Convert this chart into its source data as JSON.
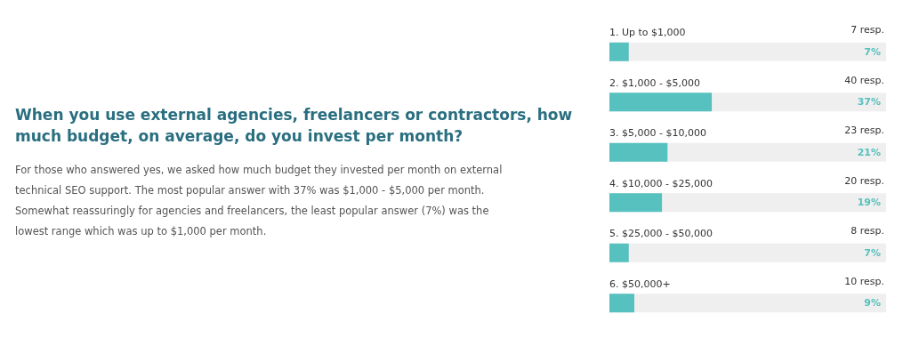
{
  "chart_data": {
    "type": "bar",
    "orientation": "horizontal",
    "title": "When you use external agencies, freelancers or contractors, how much budget, on average, do you invest per month?",
    "subtitle": "For those who answered yes, we asked how much budget they invested per month on external technical SEO support. The most popular answer with 37% was $1,000 - $5,000 per month. Somewhat reassuringly for agencies and freelancers, the least popular answer (7%) was the lowest range which was up to $1,000 per month.",
    "categories": [
      "1. Up to $1,000",
      "2. $1,000 - $5,000",
      "3. $5,000 - $10,000",
      "4. $10,000 - $25,000",
      "5. $25,000 - $50,000",
      "6. $50,000+"
    ],
    "values": [
      7,
      37,
      21,
      19,
      7,
      9
    ],
    "value_labels": [
      "7%",
      "37%",
      "21%",
      "19%",
      "7%",
      "9%"
    ],
    "color": "#56c1be",
    "xlim": [
      0,
      100
    ],
    "tick_labels": "y",
    "annotations": [
      "7 resp.",
      "40 resp.",
      "23 resp.",
      "20 resp.",
      "8 resp.",
      "10 resp."
    ]
  }
}
